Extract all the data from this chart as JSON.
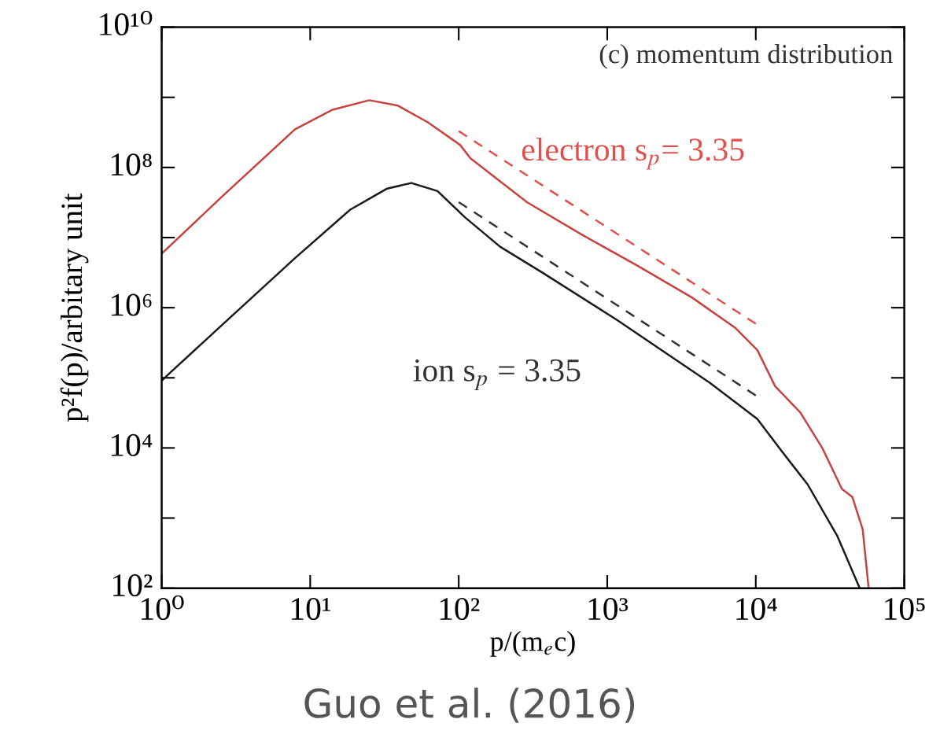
{
  "chart_data": {
    "type": "line",
    "log": "xy",
    "xlabel": "p/(m$_{e}$c)",
    "ylabel": "p²f(p)/arbitary unit",
    "xlim": [
      1,
      100000
    ],
    "ylim": [
      100,
      10000000000
    ],
    "xticks": [
      {
        "value": 1,
        "label": "10⁰"
      },
      {
        "value": 10,
        "label": "10¹"
      },
      {
        "value": 100,
        "label": "10²"
      },
      {
        "value": 1000,
        "label": "10³"
      },
      {
        "value": 10000,
        "label": "10⁴"
      },
      {
        "value": 100000,
        "label": "10⁵"
      }
    ],
    "yticks": [
      {
        "value": 100,
        "label": "10²"
      },
      {
        "value": 10000,
        "label": "10⁴"
      },
      {
        "value": 1000000,
        "label": "10⁶"
      },
      {
        "value": 100000000,
        "label": "10⁸"
      },
      {
        "value": 10000000000,
        "label": "10¹⁰"
      }
    ],
    "grid": false,
    "legend": false,
    "series": [
      {
        "color": "#c8423f",
        "line_style": "solid",
        "x": [
          1,
          2.6,
          7.9,
          14,
          25,
          39,
          62,
          102,
          120,
          288,
          676,
          1585,
          3715,
          7244,
          10233,
          13490,
          19953,
          28184,
          38019,
          44668,
          52481,
          57544
        ],
        "values": [
          5900000,
          40000000,
          350000000,
          660000000,
          910000000,
          760000000,
          440000000,
          210000000,
          135000000,
          32000000,
          11000000,
          4000000,
          1400000,
          520000,
          250000,
          76000,
          32000,
          9800,
          2600,
          2000,
          690,
          100
        ]
      },
      {
        "color": "#1a1a1a",
        "line_style": "solid",
        "x": [
          1,
          1.15,
          2.6,
          7.9,
          18.6,
          33,
          48,
          72,
          110,
          190,
          363,
          1148,
          4898,
          10233,
          15136,
          22387,
          35481,
          50119
        ],
        "values": [
          91000,
          120000,
          590000,
          5100000,
          25000000,
          50000000,
          60000000,
          46000000,
          19500000,
          7400000,
          3200000,
          680000,
          85000,
          26000,
          8700,
          3000,
          550,
          100
        ]
      },
      {
        "name": "electron s$_{p}$= 3.35",
        "color": "#e0504c",
        "line_style": "dashed",
        "x": [
          100,
          10000
        ],
        "values": [
          330000000,
          590000
        ]
      },
      {
        "name": "ion s$_{p}$ = 3.35",
        "color": "#333333",
        "line_style": "dashed",
        "x": [
          100,
          10000
        ],
        "values": [
          32000000,
          56000
        ]
      }
    ],
    "annotations": [
      "(c) momentum distribution",
      "Guo et al. (2016)"
    ]
  }
}
